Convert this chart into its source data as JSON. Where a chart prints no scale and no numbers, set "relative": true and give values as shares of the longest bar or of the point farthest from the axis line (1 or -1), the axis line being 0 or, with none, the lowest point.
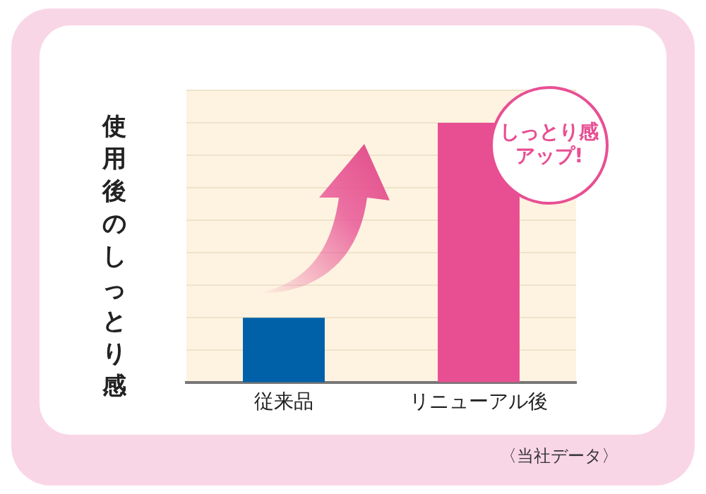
{
  "chart_data": {
    "type": "bar",
    "ylabel": "使用後のしっとり感",
    "categories": [
      "従来品",
      "リニューアル後"
    ],
    "relative": true,
    "colors": [
      "#0060a8",
      "#e84f93"
    ],
    "values": [
      0.25,
      1
    ],
    "grid": "y",
    "annotations": [
      {
        "text": "しっとり感アップ!",
        "x": "リニューアル後",
        "y": 1
      },
      "〈当社データ〉"
    ]
  }
}
